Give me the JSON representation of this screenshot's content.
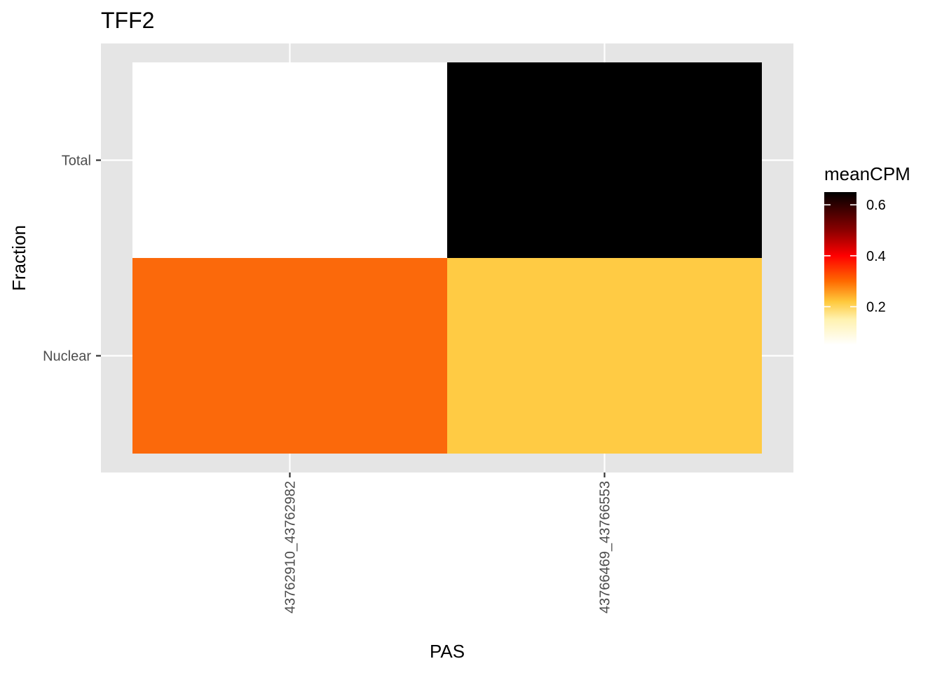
{
  "chart_data": {
    "type": "heatmap",
    "title": "TFF2",
    "xlabel": "PAS",
    "ylabel": "Fraction",
    "x_categories": [
      "43762910_43762982",
      "43766469_43766553"
    ],
    "y_categories": [
      "Nuclear",
      "Total"
    ],
    "cells": [
      {
        "x": "43762910_43762982",
        "y": "Total",
        "value": 0.05,
        "color": "#ffffff"
      },
      {
        "x": "43766469_43766553",
        "y": "Total",
        "value": 0.65,
        "color": "#000000"
      },
      {
        "x": "43762910_43762982",
        "y": "Nuclear",
        "value": 0.29,
        "color": "#fb690b"
      },
      {
        "x": "43766469_43766553",
        "y": "Nuclear",
        "value": 0.21,
        "color": "#ffcb44"
      }
    ],
    "legend": {
      "title": "meanCPM",
      "ticks": [
        0.2,
        0.4,
        0.6
      ],
      "tick_labels": [
        "0.2",
        "0.4",
        "0.6"
      ],
      "range": [
        0.05,
        0.65
      ],
      "placement": "right",
      "gradient": [
        {
          "value": 0.05,
          "color": "#ffffff"
        },
        {
          "value": 0.15,
          "color": "#fff2b0"
        },
        {
          "value": 0.22,
          "color": "#ffc93c"
        },
        {
          "value": 0.3,
          "color": "#ff6a00"
        },
        {
          "value": 0.4,
          "color": "#ff0000"
        },
        {
          "value": 0.5,
          "color": "#8b0000"
        },
        {
          "value": 0.65,
          "color": "#000000"
        }
      ]
    },
    "grid": true,
    "panel_background": "#e5e5e5",
    "gridline_color": "#ffffff"
  }
}
